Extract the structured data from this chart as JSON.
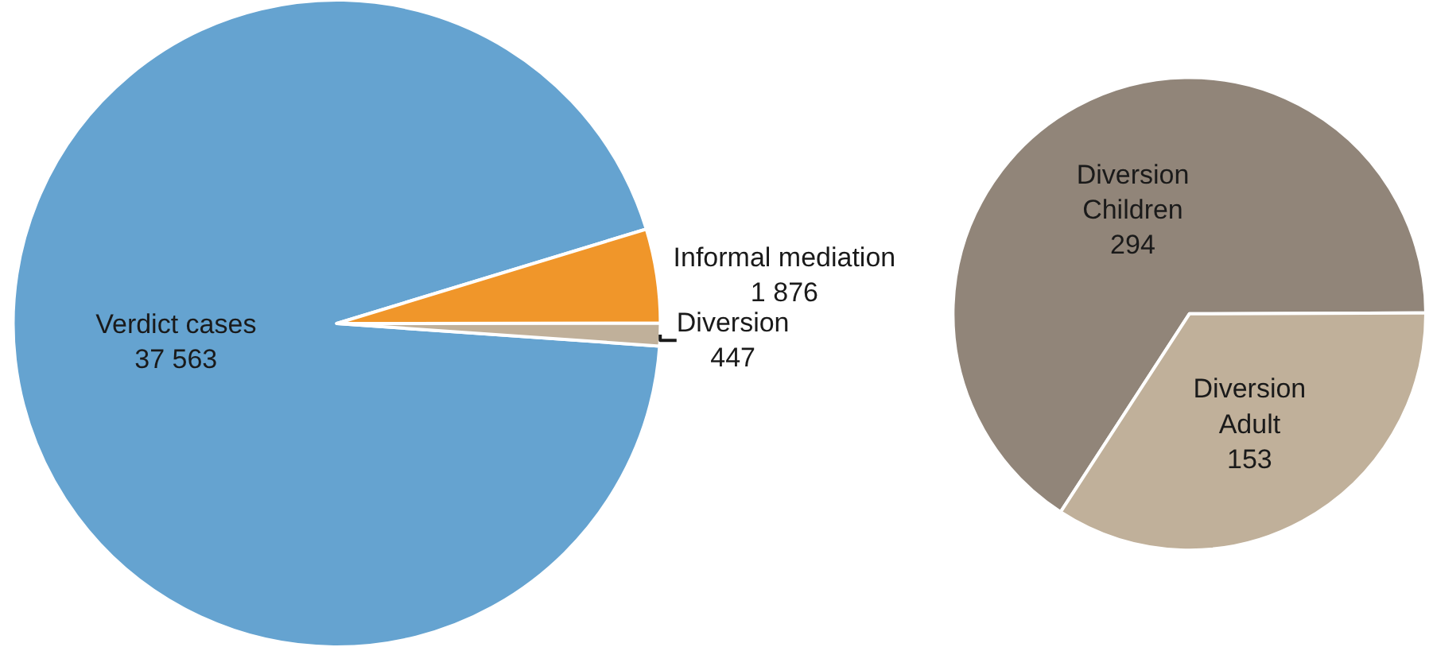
{
  "chart_data": [
    {
      "type": "pie",
      "categories": [
        "Verdict cases",
        "Informal mediation",
        "Diversion"
      ],
      "values": [
        37563,
        1876,
        447
      ],
      "colors": [
        "#65a3d0",
        "#f0962a",
        "#c0b09a"
      ],
      "data_labels": true,
      "legend": false
    },
    {
      "type": "pie",
      "categories": [
        "Diversion\nChildren",
        "Diversion\nAdult"
      ],
      "values": [
        294,
        153
      ],
      "colors": [
        "#918579",
        "#c0b09a"
      ],
      "data_labels": true,
      "legend": false
    }
  ]
}
